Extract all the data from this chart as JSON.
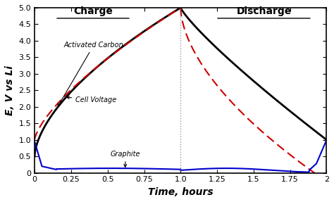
{
  "title_charge": "Charge",
  "title_discharge": "Discharge",
  "xlabel": "Time, hours",
  "ylabel": "E, V vs Li",
  "xlim": [
    0,
    2.0
  ],
  "ylim": [
    0,
    5.0
  ],
  "xticks": [
    0,
    0.25,
    0.5,
    0.75,
    1.0,
    1.25,
    1.5,
    1.75,
    2.0
  ],
  "yticks": [
    0,
    0.5,
    1.0,
    1.5,
    2.0,
    2.5,
    3.0,
    3.5,
    4.0,
    4.5,
    5.0
  ],
  "xtick_labels": [
    "0",
    "0.25",
    "0.5",
    "0.75",
    "1.0",
    "1.25",
    "1.5",
    "1.75",
    "2"
  ],
  "ytick_labels": [
    "0",
    "0.5",
    "1.0",
    "1.5",
    "2.0",
    "2.5",
    "3.0",
    "3.5",
    "4.0",
    "4.5",
    "5.0"
  ],
  "vline_x": 1.0,
  "background_color": "#ffffff",
  "activated_carbon_color": "#000000",
  "cell_voltage_color": "#cc0000",
  "graphite_color": "#0000cc"
}
